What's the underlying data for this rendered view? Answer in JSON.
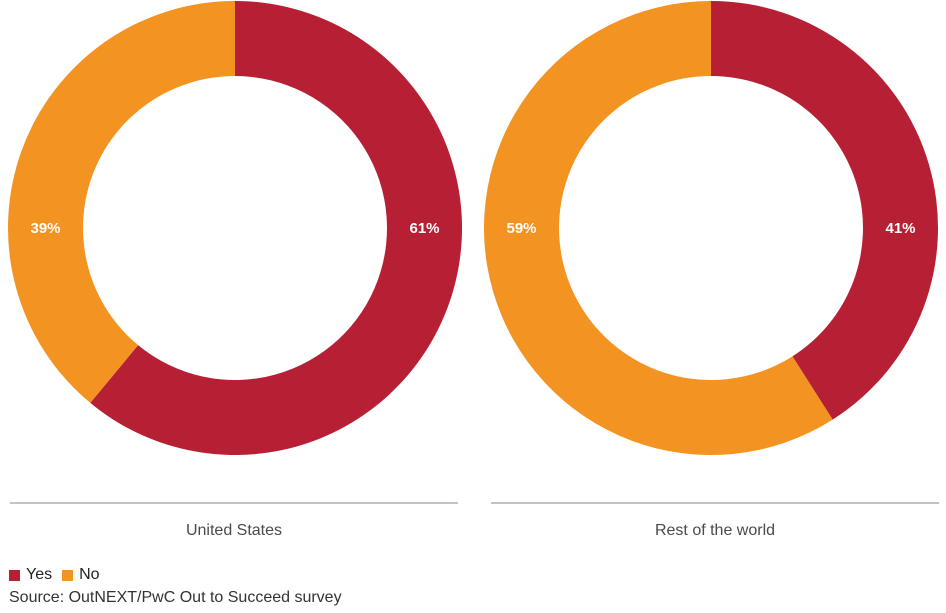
{
  "chart_data": [
    {
      "type": "pie",
      "title": "",
      "caption": "United States",
      "categories": [
        "Yes",
        "No"
      ],
      "values": [
        61,
        39
      ],
      "labels": [
        "61%",
        "39%"
      ],
      "colors": [
        "#b71f35",
        "#f39321"
      ],
      "donut": true
    },
    {
      "type": "pie",
      "title": "",
      "caption": "Rest of the world",
      "categories": [
        "Yes",
        "No"
      ],
      "values": [
        41,
        59
      ],
      "labels": [
        "41%",
        "59%"
      ],
      "colors": [
        "#b71f35",
        "#f39321"
      ],
      "donut": true
    }
  ],
  "legend": {
    "items": [
      {
        "label": "Yes",
        "color": "#b71f35"
      },
      {
        "label": "No",
        "color": "#f39321"
      }
    ]
  },
  "source": "Source: OutNEXT/PwC Out to Succeed survey"
}
